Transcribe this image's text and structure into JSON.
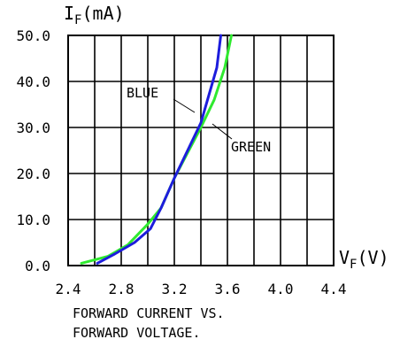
{
  "chart_data": {
    "type": "line",
    "y_axis_label": {
      "base": "I",
      "subscript": "F",
      "unit": "(mA)"
    },
    "x_axis_label": {
      "base": "V",
      "subscript": "F",
      "unit": "(V)"
    },
    "x_ticks": [
      "2.4",
      "2.8",
      "3.2",
      "3.6",
      "4.0",
      "4.4"
    ],
    "y_ticks": [
      "0.0",
      "10.0",
      "20.0",
      "30.0",
      "40.0",
      "50.0"
    ],
    "x_tick_values": [
      2.4,
      2.8,
      3.2,
      3.6,
      4.0,
      4.4
    ],
    "y_tick_values": [
      0,
      10,
      20,
      30,
      40,
      50
    ],
    "xlim": [
      2.4,
      4.4
    ],
    "ylim": [
      0,
      50
    ],
    "grid": true,
    "x_minor_divisions": 2,
    "series": [
      {
        "name": "BLUE",
        "color": "#1d1ddc",
        "x": [
          2.62,
          2.75,
          2.9,
          3.02,
          3.1,
          3.2,
          3.3,
          3.4,
          3.46,
          3.52,
          3.55
        ],
        "y": [
          0.5,
          2.5,
          5,
          8,
          12.5,
          19,
          25,
          31,
          37,
          43,
          50
        ]
      },
      {
        "name": "GREEN",
        "color": "#2fea2f",
        "x": [
          2.5,
          2.7,
          2.85,
          3.0,
          3.1,
          3.2,
          3.3,
          3.4,
          3.5,
          3.58,
          3.63
        ],
        "y": [
          0.5,
          2,
          4.5,
          9,
          12.5,
          19,
          24.5,
          30,
          36,
          43,
          50
        ]
      }
    ],
    "caption_lines": [
      "FORWARD CURRENT VS.",
      "FORWARD VOLTAGE."
    ]
  }
}
